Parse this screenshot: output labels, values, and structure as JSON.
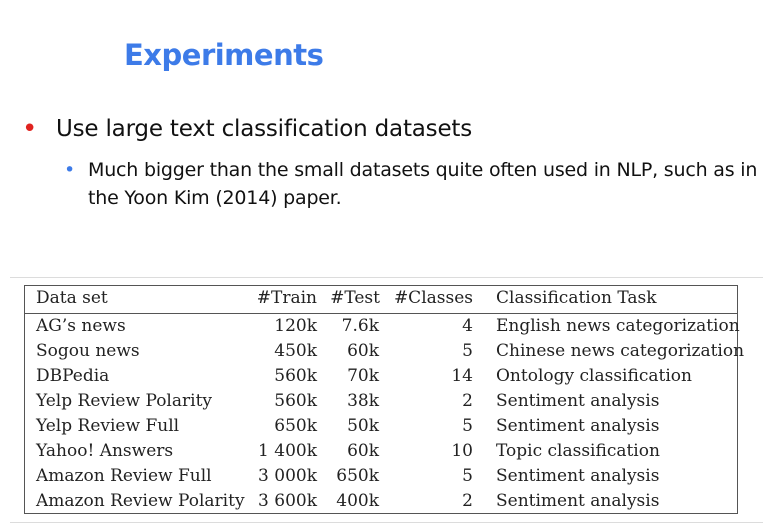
{
  "slide": {
    "title": "Experiments",
    "bullet1": "Use large text classification datasets",
    "bullet2": "Much bigger than the small datasets quite often used in NLP, such as in the Yoon Kim (2014) paper."
  },
  "table": {
    "headers": [
      "Data set",
      "#Train",
      "#Test",
      "#Classes",
      "Classification Task"
    ],
    "rows": [
      [
        "AG’s news",
        "120k",
        "7.6k",
        "4",
        "English news categorization"
      ],
      [
        "Sogou news",
        "450k",
        "60k",
        "5",
        "Chinese news categorization"
      ],
      [
        "DBPedia",
        "560k",
        "70k",
        "14",
        "Ontology classification"
      ],
      [
        "Yelp Review Polarity",
        "560k",
        "38k",
        "2",
        "Sentiment analysis"
      ],
      [
        "Yelp Review Full",
        "650k",
        "50k",
        "5",
        "Sentiment analysis"
      ],
      [
        "Yahoo! Answers",
        "1 400k",
        "60k",
        "10",
        "Topic classification"
      ],
      [
        "Amazon Review Full",
        "3 000k",
        "650k",
        "5",
        "Sentiment analysis"
      ],
      [
        "Amazon Review Polarity",
        "3 600k",
        "400k",
        "2",
        "Sentiment analysis"
      ]
    ]
  },
  "colors": {
    "title": "#3d7be8",
    "bullet_level1": "#e0231f",
    "bullet_level2": "#3d7be8"
  }
}
